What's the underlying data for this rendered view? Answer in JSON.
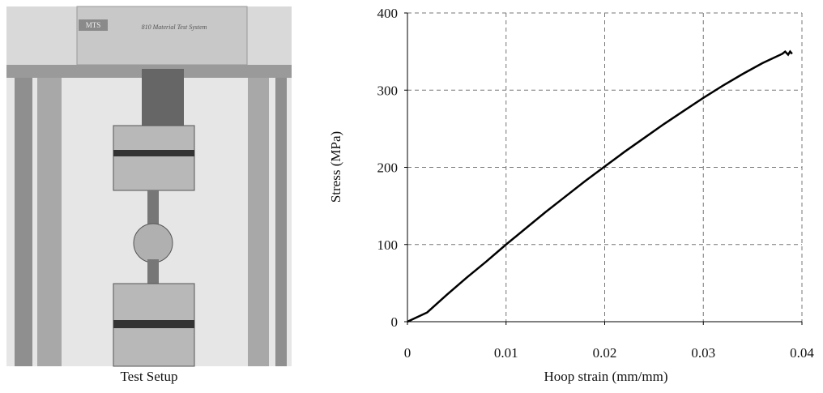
{
  "photo": {
    "brand": "MTS",
    "label": "810 Material Test System",
    "caption": "Test Setup"
  },
  "chart_data": {
    "type": "line",
    "xlabel": "Hoop strain (mm/mm)",
    "ylabel": "Stress (MPa)",
    "x": [
      0,
      0.002,
      0.004,
      0.006,
      0.008,
      0.01,
      0.012,
      0.014,
      0.016,
      0.018,
      0.02,
      0.022,
      0.024,
      0.026,
      0.028,
      0.03,
      0.032,
      0.034,
      0.036,
      0.038,
      0.0383,
      0.0386,
      0.0388,
      0.039
    ],
    "series": [
      {
        "color": "#000000",
        "values": [
          0,
          12,
          35,
          57,
          78,
          100,
          121,
          142,
          162,
          182,
          201,
          220,
          238,
          256,
          273,
          290,
          306,
          321,
          335,
          347,
          350,
          346,
          350,
          347
        ]
      }
    ],
    "xlim": [
      0,
      0.04
    ],
    "xticks": [
      0,
      0.01,
      0.02,
      0.03,
      0.04
    ],
    "ylim": [
      0,
      400
    ],
    "yticks": [
      0,
      100,
      200,
      300,
      400
    ],
    "grid": true
  }
}
